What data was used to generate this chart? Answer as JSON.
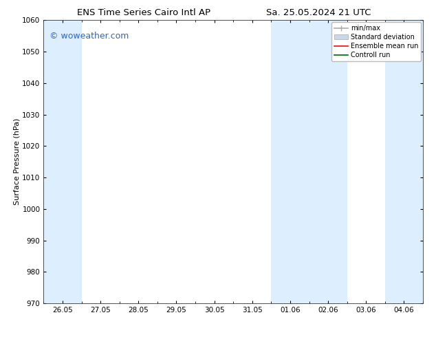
{
  "title_left": "ENS Time Series Cairo Intl AP",
  "title_right": "Sa. 25.05.2024 21 UTC",
  "ylabel": "Surface Pressure (hPa)",
  "ylim": [
    970,
    1060
  ],
  "yticks": [
    970,
    980,
    990,
    1000,
    1010,
    1020,
    1030,
    1040,
    1050,
    1060
  ],
  "xlabel_ticks": [
    "26.05",
    "27.05",
    "28.05",
    "29.05",
    "30.05",
    "31.05",
    "01.06",
    "02.06",
    "03.06",
    "04.06"
  ],
  "x_positions": [
    0,
    1,
    2,
    3,
    4,
    5,
    6,
    7,
    8,
    9
  ],
  "xlim": [
    -0.5,
    9.5
  ],
  "shaded_bands": [
    {
      "x_start": -0.5,
      "x_end": 0.5
    },
    {
      "x_start": 5.5,
      "x_end": 7.5
    },
    {
      "x_start": 8.5,
      "x_end": 9.5
    }
  ],
  "band_color": "#ddeeff",
  "background_color": "#ffffff",
  "watermark_text": "© woweather.com",
  "watermark_color": "#3366bb",
  "legend_items": [
    {
      "label": "min/max",
      "color": "#aaaaaa",
      "lw": 1.2,
      "type": "minmax"
    },
    {
      "label": "Standard deviation",
      "color": "#c8d8e8",
      "lw": 6,
      "type": "patch"
    },
    {
      "label": "Ensemble mean run",
      "color": "#ff0000",
      "lw": 1.2,
      "type": "line"
    },
    {
      "label": "Controll run",
      "color": "#006600",
      "lw": 1.2,
      "type": "line"
    }
  ],
  "font_size_title": 9.5,
  "font_size_labels": 8,
  "font_size_ticks": 7.5,
  "font_size_watermark": 9,
  "font_size_legend": 7
}
